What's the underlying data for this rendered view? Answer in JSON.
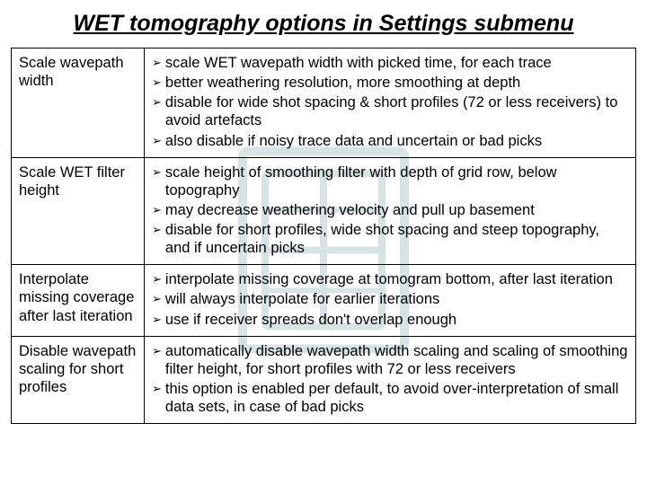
{
  "title": "WET tomography options in Settings submenu",
  "rows": [
    {
      "label": "Scale wavepath width",
      "bullets": [
        "scale WET wavepath width with picked time, for each trace",
        "better weathering resolution, more smoothing at depth",
        "disable for wide shot spacing & short profiles (72 or less receivers) to avoid artefacts",
        "also disable if noisy trace data and uncertain or bad picks"
      ]
    },
    {
      "label": "Scale WET filter height",
      "bullets": [
        "scale height of smoothing filter with depth of grid row, below topography",
        "may decrease weathering velocity and pull up basement",
        "disable for short profiles, wide shot spacing and steep topography, and if uncertain picks"
      ]
    },
    {
      "label": "Interpolate missing coverage after last iteration",
      "bullets": [
        "interpolate missing coverage at tomogram bottom, after last iteration",
        "will always interpolate for earlier iterations",
        "use if receiver spreads don't overlap enough"
      ]
    },
    {
      "label": "Disable wavepath scaling for short profiles",
      "bullets": [
        "automatically disable wavepath width scaling and scaling of smoothing filter height, for short profiles with 72 or less receivers",
        "this option is enabled per default, to avoid over-interpretation of small data sets, in case of bad picks"
      ]
    }
  ],
  "style": {
    "watermark_color": "#4a8a8a",
    "watermark_opacity": 0.22,
    "title_fontsize": 25,
    "body_fontsize": 16.5,
    "border_color": "#000000",
    "background": "#ffffff"
  }
}
